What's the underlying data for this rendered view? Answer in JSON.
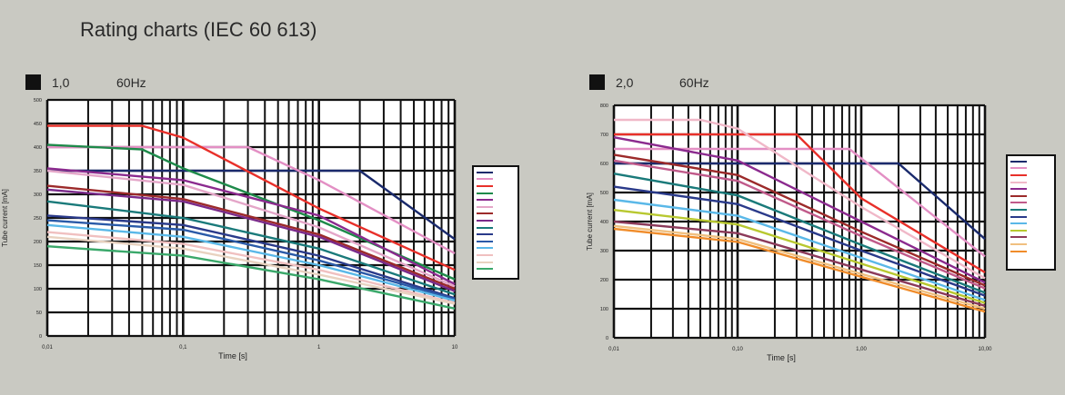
{
  "title": "Rating charts (IEC 60 613)",
  "chart_data": [
    {
      "type": "line",
      "focal_spot": "1,0",
      "frequency": "60Hz",
      "xlabel": "Time [s]",
      "ylabel": "Tube current [mA]",
      "xscale": "log",
      "xlim": [
        0.01,
        10
      ],
      "ylim": [
        0,
        500
      ],
      "x_tick_labels": [
        "0,01",
        "0,1",
        "1",
        "10"
      ],
      "x_tick_values": [
        0.01,
        0.1,
        1,
        10
      ],
      "y_ticks": [
        0,
        50,
        100,
        150,
        200,
        250,
        300,
        350,
        400,
        450,
        500
      ],
      "grid": true,
      "legend_position": "right",
      "series": [
        {
          "color": "#1a2a6c",
          "values": [
            [
              0.01,
              350
            ],
            [
              0.1,
              350
            ],
            [
              0.5,
              350
            ],
            [
              1,
              350
            ],
            [
              2,
              350
            ],
            [
              10,
              205
            ]
          ]
        },
        {
          "color": "#e38fc4",
          "values": [
            [
              0.01,
              400
            ],
            [
              0.1,
              400
            ],
            [
              0.3,
              400
            ],
            [
              1,
              330
            ],
            [
              10,
              175
            ]
          ]
        },
        {
          "color": "#e8302a",
          "values": [
            [
              0.01,
              445
            ],
            [
              0.05,
              445
            ],
            [
              0.1,
              420
            ],
            [
              1,
              270
            ],
            [
              10,
              140
            ]
          ]
        },
        {
          "color": "#1e8a4a",
          "values": [
            [
              0.01,
              405
            ],
            [
              0.05,
              395
            ],
            [
              0.1,
              355
            ],
            [
              1,
              245
            ],
            [
              10,
              120
            ]
          ]
        },
        {
          "color": "#8b2a8e",
          "values": [
            [
              0.01,
              355
            ],
            [
              0.1,
              330
            ],
            [
              1,
              255
            ],
            [
              10,
              110
            ]
          ]
        },
        {
          "color": "#e4a6c8",
          "values": [
            [
              0.01,
              350
            ],
            [
              0.1,
              320
            ],
            [
              1,
              230
            ],
            [
              10,
              105
            ]
          ]
        },
        {
          "color": "#9c2a2a",
          "values": [
            [
              0.01,
              318
            ],
            [
              0.1,
              290
            ],
            [
              1,
              215
            ],
            [
              10,
              100
            ]
          ]
        },
        {
          "color": "#7a2a8a",
          "values": [
            [
              0.01,
              310
            ],
            [
              0.1,
              285
            ],
            [
              1,
              210
            ],
            [
              10,
              95
            ]
          ]
        },
        {
          "color": "#1a7a7a",
          "values": [
            [
              0.01,
              285
            ],
            [
              0.1,
              250
            ],
            [
              1,
              185
            ],
            [
              10,
              88
            ]
          ]
        },
        {
          "color": "#2a3a8a",
          "values": [
            [
              0.01,
              255
            ],
            [
              0.1,
              235
            ],
            [
              1,
              170
            ],
            [
              10,
              80
            ]
          ]
        },
        {
          "color": "#2a5aa8",
          "values": [
            [
              0.01,
              245
            ],
            [
              0.1,
              225
            ],
            [
              1,
              160
            ],
            [
              10,
              78
            ]
          ]
        },
        {
          "color": "#5ab8e8",
          "values": [
            [
              0.01,
              235
            ],
            [
              0.1,
              210
            ],
            [
              1,
              150
            ],
            [
              10,
              75
            ]
          ]
        },
        {
          "color": "#f0c0c0",
          "values": [
            [
              0.01,
              220
            ],
            [
              0.1,
              195
            ],
            [
              1,
              140
            ],
            [
              10,
              70
            ]
          ]
        },
        {
          "color": "#e8d2c0",
          "values": [
            [
              0.01,
              210
            ],
            [
              0.1,
              185
            ],
            [
              1,
              130
            ],
            [
              10,
              68
            ]
          ]
        },
        {
          "color": "#3aa86a",
          "values": [
            [
              0.01,
              190
            ],
            [
              0.1,
              170
            ],
            [
              1,
              120
            ],
            [
              10,
              58
            ]
          ]
        }
      ]
    },
    {
      "type": "line",
      "focal_spot": "2,0",
      "frequency": "60Hz",
      "xlabel": "Time [s]",
      "ylabel": "Tube current [mA]",
      "xscale": "log",
      "xlim": [
        0.01,
        10
      ],
      "ylim": [
        0,
        800
      ],
      "x_tick_labels": [
        "0,01",
        "0,10",
        "1,00",
        "10,00"
      ],
      "x_tick_values": [
        0.01,
        0.1,
        1,
        10
      ],
      "y_ticks": [
        0,
        100,
        200,
        300,
        400,
        500,
        600,
        700,
        800
      ],
      "grid": true,
      "legend_position": "right",
      "series": [
        {
          "color": "#1a2a6c",
          "values": [
            [
              0.01,
              600
            ],
            [
              0.5,
              600
            ],
            [
              2,
              600
            ],
            [
              10,
              340
            ]
          ]
        },
        {
          "color": "#e38fc4",
          "values": [
            [
              0.01,
              650
            ],
            [
              0.3,
              650
            ],
            [
              0.8,
              650
            ],
            [
              10,
              280
            ]
          ]
        },
        {
          "color": "#e8302a",
          "values": [
            [
              0.01,
              700
            ],
            [
              0.1,
              700
            ],
            [
              0.3,
              700
            ],
            [
              1,
              480
            ],
            [
              10,
              225
            ]
          ]
        },
        {
          "color": "#f0b8c8",
          "values": [
            [
              0.01,
              750
            ],
            [
              0.05,
              750
            ],
            [
              0.1,
              720
            ],
            [
              1,
              450
            ],
            [
              10,
              205
            ]
          ]
        },
        {
          "color": "#8b2a8e",
          "values": [
            [
              0.01,
              690
            ],
            [
              0.1,
              610
            ],
            [
              1,
              400
            ],
            [
              10,
              190
            ]
          ]
        },
        {
          "color": "#9c2a2a",
          "values": [
            [
              0.01,
              630
            ],
            [
              0.1,
              560
            ],
            [
              1,
              365
            ],
            [
              10,
              180
            ]
          ]
        },
        {
          "color": "#c05a8a",
          "values": [
            [
              0.01,
              610
            ],
            [
              0.1,
              540
            ],
            [
              1,
              350
            ],
            [
              10,
              170
            ]
          ]
        },
        {
          "color": "#1a7a7a",
          "values": [
            [
              0.01,
              565
            ],
            [
              0.1,
              490
            ],
            [
              1,
              320
            ],
            [
              10,
              155
            ]
          ]
        },
        {
          "color": "#2a3a8a",
          "values": [
            [
              0.01,
              520
            ],
            [
              0.1,
              460
            ],
            [
              1,
              300
            ],
            [
              10,
              145
            ]
          ]
        },
        {
          "color": "#5ab8e8",
          "values": [
            [
              0.01,
              475
            ],
            [
              0.1,
              420
            ],
            [
              1,
              275
            ],
            [
              10,
              130
            ]
          ]
        },
        {
          "color": "#b8c830",
          "values": [
            [
              0.01,
              440
            ],
            [
              0.1,
              390
            ],
            [
              1,
              255
            ],
            [
              10,
              120
            ]
          ]
        },
        {
          "color": "#8c3a5a",
          "values": [
            [
              0.01,
              400
            ],
            [
              0.1,
              360
            ],
            [
              1,
              235
            ],
            [
              10,
              110
            ]
          ]
        },
        {
          "color": "#f0c080",
          "values": [
            [
              0.01,
              385
            ],
            [
              0.1,
              340
            ],
            [
              1,
              220
            ],
            [
              10,
              100
            ]
          ]
        },
        {
          "color": "#f08c2a",
          "values": [
            [
              0.01,
              375
            ],
            [
              0.1,
              330
            ],
            [
              1,
              210
            ],
            [
              10,
              90
            ]
          ]
        }
      ]
    }
  ]
}
